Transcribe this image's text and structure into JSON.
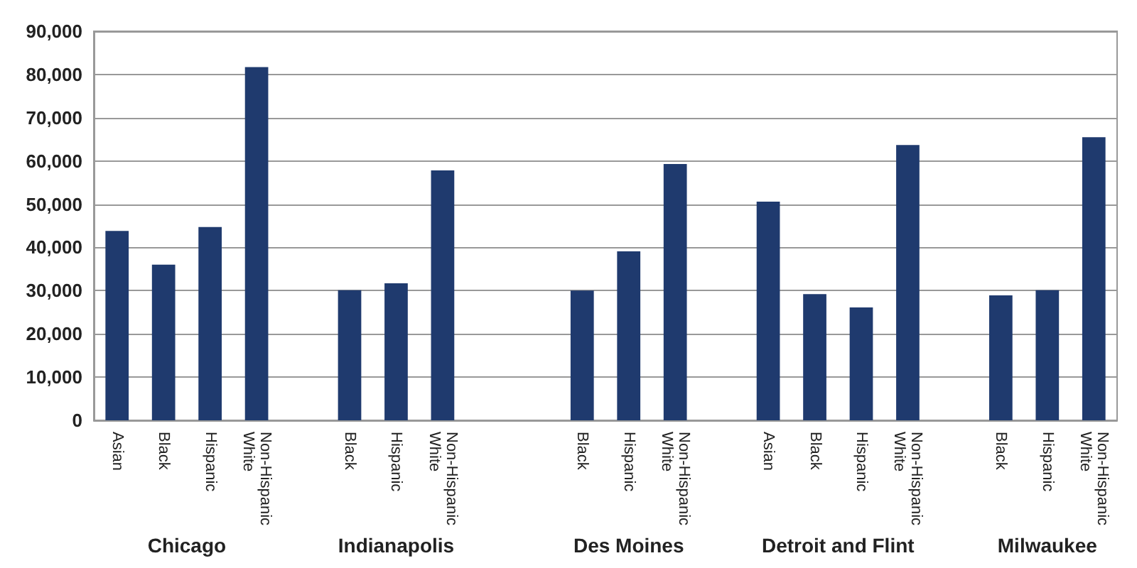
{
  "chart_data": {
    "type": "bar",
    "categories": [
      "Asian",
      "Black",
      "Hispanic",
      "Non-Hispanic White",
      null,
      "Black",
      "Hispanic",
      "Non-Hispanic White",
      null,
      null,
      "Black",
      "Hispanic",
      "Non-Hispanic White",
      null,
      "Asian",
      "Black",
      "Hispanic",
      "Non-Hispanic White",
      null,
      "Black",
      "Hispanic",
      "Non-Hispanic White"
    ],
    "values": [
      43800,
      36000,
      44700,
      81700,
      null,
      30100,
      31700,
      57800,
      null,
      null,
      30000,
      39100,
      59300,
      null,
      50600,
      29200,
      26100,
      63700,
      null,
      28900,
      30100,
      65500
    ],
    "color": "#1f3a6e",
    "ylim": [
      0,
      90000
    ],
    "yticks": [
      0,
      {
        "value": 10000,
        "label": "10,000"
      },
      {
        "value": 20000,
        "label": "20,000"
      },
      {
        "value": 30000,
        "label": "30,000"
      },
      {
        "value": 40000,
        "label": "40,000"
      },
      {
        "value": 50000,
        "label": "50,000"
      },
      {
        "value": 60000,
        "label": "60,000"
      },
      {
        "value": 70000,
        "label": "70,000"
      },
      {
        "value": 80000,
        "label": "80,000"
      },
      {
        "value": 90000,
        "label": "90,000"
      }
    ],
    "grid": "y",
    "annotations": [
      "Chicago",
      "Indianapolis",
      "Des Moines",
      "Detroit and Flint",
      "Milwaukee"
    ]
  }
}
